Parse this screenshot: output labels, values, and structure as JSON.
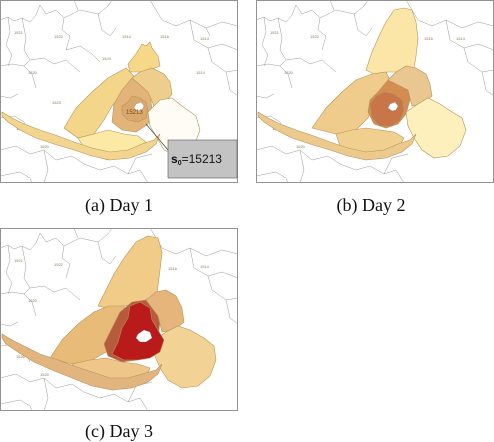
{
  "panels": [
    {
      "caption": "(a) Day 1",
      "seed_label": "s",
      "seed_subscript": "0",
      "seed_value": "=15213",
      "seed_zone_label": "15213",
      "colors": {
        "north": "#f6d888",
        "west": "#f3d68a",
        "center": "#e3b47a",
        "northeast": "#edce8c",
        "east": "#fffcf5",
        "seed": "#d9a86c",
        "south": "#fde9a6",
        "river": "#f2d690",
        "edge": "#b69359"
      }
    },
    {
      "caption": "(b) Day 2",
      "colors": {
        "north": "#fbe6a8",
        "west": "#f0cc8c",
        "center": "#d48d50",
        "northeast": "#eac690",
        "east": "#fdf0bd",
        "seed": "#c9754a",
        "south": "#f1d08f",
        "river": "#ecca8d",
        "edge": "#b69359"
      }
    },
    {
      "caption": "(c) Day 3",
      "colors": {
        "north": "#f0cc88",
        "west": "#e8bb78",
        "center": "#b85a3c",
        "northeast": "#e5b57c",
        "east": "#f3d295",
        "seed": "#b91a1a",
        "south": "#efc58a",
        "river": "#e3b57e",
        "edge": "#b69359"
      }
    }
  ]
}
